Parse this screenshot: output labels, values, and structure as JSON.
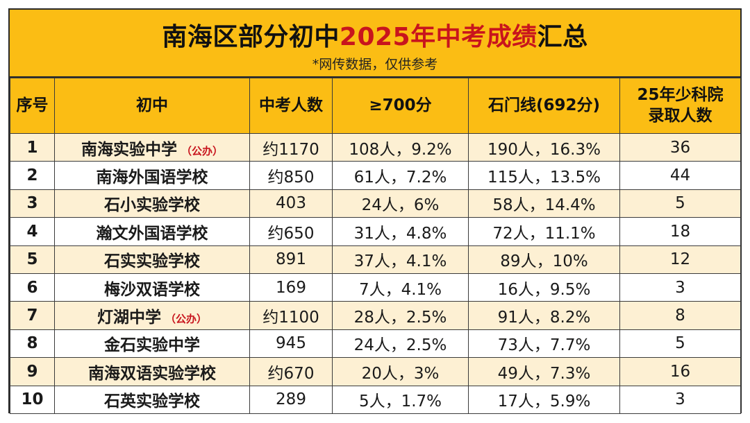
{
  "title": {
    "part1": "南海区部分初中",
    "part2": "2025年中考成绩",
    "part3": "汇总"
  },
  "subtitle": "*网传数据，仅供参考",
  "colors": {
    "header_bg": "#fbbd14",
    "stripe_bg": "#fdf0d3",
    "highlight_red": "#c8141d"
  },
  "table": {
    "headers": {
      "seq": "序号",
      "school": "初中",
      "count": "中考人数",
      "over700": "≥700分",
      "shimen": "石门线(692分)",
      "kaoyuan_line1": "25年少科院",
      "kaoyuan_line2": "录取人数"
    },
    "rows": [
      {
        "seq": "1",
        "school": "南海实验中学",
        "tag": "（公办）",
        "count": "约1170",
        "over700": "108人，9.2%",
        "shimen": "190人，16.3%",
        "kaoyuan": "36"
      },
      {
        "seq": "2",
        "school": "南海外国语学校",
        "tag": "",
        "count": "约850",
        "over700": "61人，7.2%",
        "shimen": "115人，13.5%",
        "kaoyuan": "44"
      },
      {
        "seq": "3",
        "school": "石小实验学校",
        "tag": "",
        "count": "403",
        "over700": "24人，6%",
        "shimen": "58人，14.4%",
        "kaoyuan": "5"
      },
      {
        "seq": "4",
        "school": "瀚文外国语学校",
        "tag": "",
        "count": "约650",
        "over700": "31人，4.8%",
        "shimen": "72人，11.1%",
        "kaoyuan": "18"
      },
      {
        "seq": "5",
        "school": "石实实验学校",
        "tag": "",
        "count": "891",
        "over700": "37人，4.1%",
        "shimen": "89人，10%",
        "kaoyuan": "12"
      },
      {
        "seq": "6",
        "school": "梅沙双语学校",
        "tag": "",
        "count": "169",
        "over700": "7人，4.1%",
        "shimen": "16人，9.5%",
        "kaoyuan": "3"
      },
      {
        "seq": "7",
        "school": "灯湖中学",
        "tag": "（公办）",
        "count": "约1100",
        "over700": "28人，2.5%",
        "shimen": "91人，8.2%",
        "kaoyuan": "8"
      },
      {
        "seq": "8",
        "school": "金石实验中学",
        "tag": "",
        "count": "945",
        "over700": "24人，2.5%",
        "shimen": "73人，7.7%",
        "kaoyuan": "5"
      },
      {
        "seq": "9",
        "school": "南海双语实验学校",
        "tag": "",
        "count": "约670",
        "over700": "20人，3%",
        "shimen": "49人，7.3%",
        "kaoyuan": "16"
      },
      {
        "seq": "10",
        "school": "石英实验学校",
        "tag": "",
        "count": "289",
        "over700": "5人，1.7%",
        "shimen": "17人，5.9%",
        "kaoyuan": "3"
      }
    ]
  }
}
